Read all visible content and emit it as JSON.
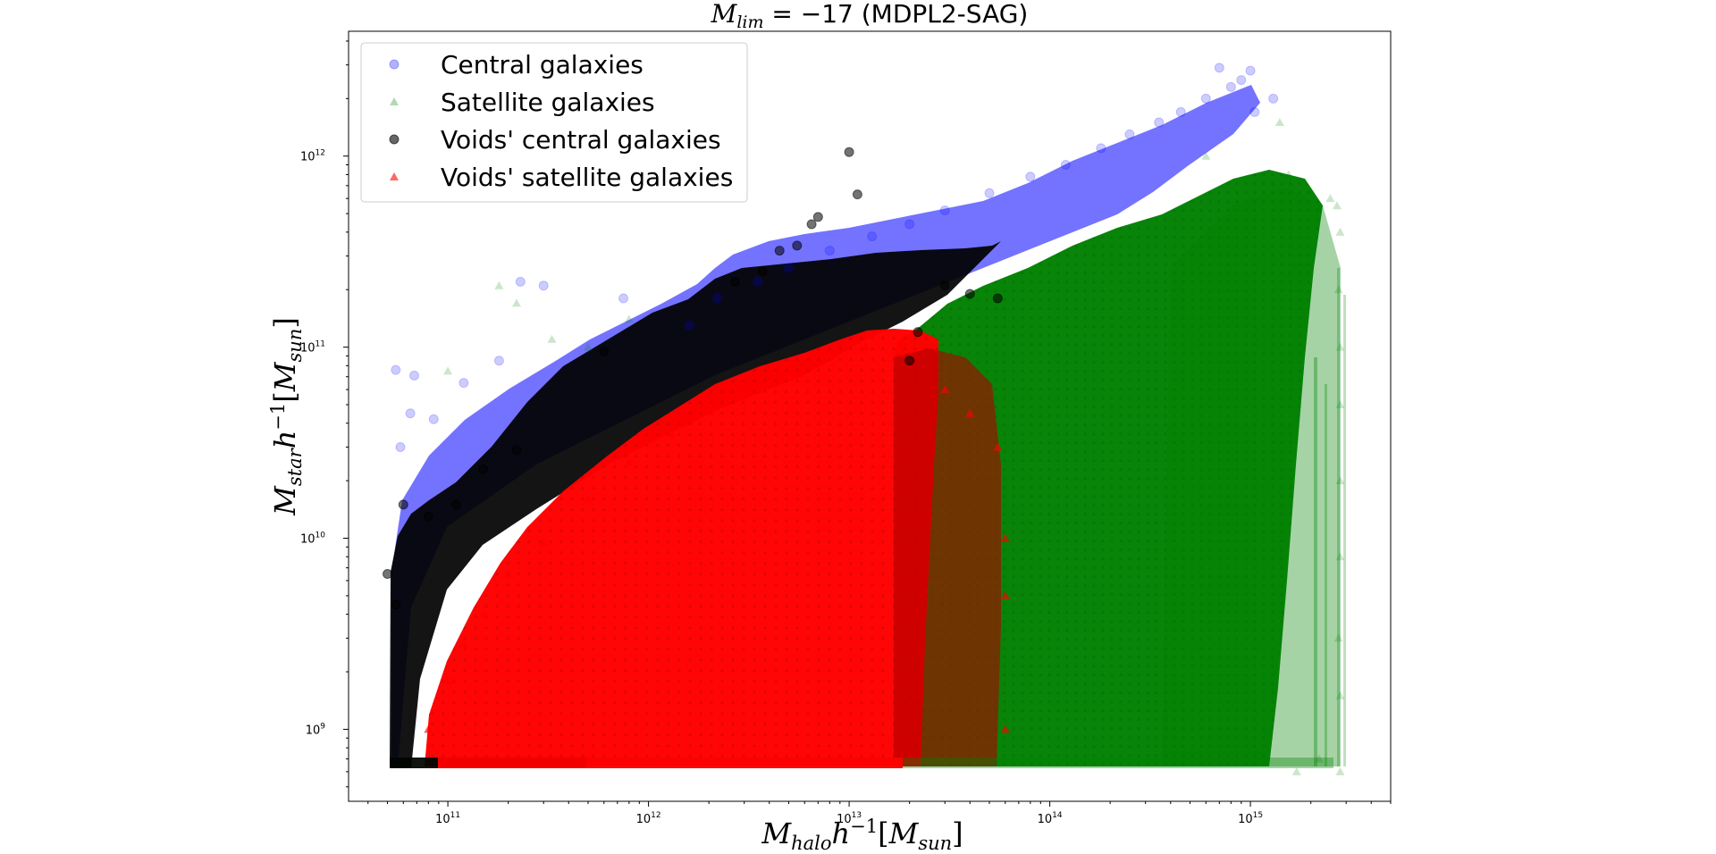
{
  "chart_data": {
    "type": "scatter",
    "title": "M_lim = −17 (MDPL2-SAG)",
    "xlabel": "M_halo h^-1[M_sun]",
    "ylabel": "M_star h^-1[M_sun]",
    "x_scale": "log",
    "y_scale": "log",
    "xlim": [
      32000000000.0,
      5000000000000000.0
    ],
    "ylim": [
      420000000.0,
      4500000000000.0
    ],
    "grid": false,
    "legend_position": "upper-left",
    "x_ticks": [
      {
        "base": "10",
        "exp": "11",
        "value": 100000000000.0
      },
      {
        "base": "10",
        "exp": "12",
        "value": 1000000000000.0
      },
      {
        "base": "10",
        "exp": "13",
        "value": 10000000000000.0
      },
      {
        "base": "10",
        "exp": "14",
        "value": 100000000000000.0
      },
      {
        "base": "10",
        "exp": "15",
        "value": 1000000000000000.0
      }
    ],
    "y_ticks": [
      {
        "base": "10",
        "exp": "9",
        "value": 1000000000.0
      },
      {
        "base": "10",
        "exp": "10",
        "value": 10000000000.0
      },
      {
        "base": "10",
        "exp": "11",
        "value": 100000000000.0
      },
      {
        "base": "10",
        "exp": "12",
        "value": 1000000000000.0
      }
    ],
    "series": [
      {
        "name": "Central galaxies",
        "marker": "circle",
        "color": "#0000ff",
        "alpha": 0.12,
        "relation": "M_star rises with M_halo from ~5e8 at M_halo 5e10 to ~2.5e12 at M_halo 1e15",
        "points": [
          [
            55000000000.0,
            76000000000.0
          ],
          [
            68000000000.0,
            71000000000.0
          ],
          [
            65000000000.0,
            45000000000.0
          ],
          [
            58000000000.0,
            30000000000.0
          ],
          [
            85000000000.0,
            42000000000.0
          ],
          [
            120000000000.0,
            65000000000.0
          ],
          [
            180000000000.0,
            85000000000.0
          ],
          [
            230000000000.0,
            220000000000.0
          ],
          [
            300000000000.0,
            210000000000.0
          ],
          [
            750000000000.0,
            180000000000.0
          ],
          [
            1600000000000.0,
            130000000000.0
          ],
          [
            2200000000000.0,
            180000000000.0
          ],
          [
            3500000000000.0,
            220000000000.0
          ],
          [
            5000000000000.0,
            260000000000.0
          ],
          [
            8000000000000.0,
            320000000000.0
          ],
          [
            13000000000000.0,
            380000000000.0
          ],
          [
            20000000000000.0,
            440000000000.0
          ],
          [
            30000000000000.0,
            520000000000.0
          ],
          [
            50000000000000.0,
            640000000000.0
          ],
          [
            80000000000000.0,
            780000000000.0
          ],
          [
            120000000000000.0,
            900000000000.0
          ],
          [
            180000000000000.0,
            1100000000000.0
          ],
          [
            250000000000000.0,
            1300000000000.0
          ],
          [
            350000000000000.0,
            1500000000000.0
          ],
          [
            450000000000000.0,
            1700000000000.0
          ],
          [
            600000000000000.0,
            2000000000000.0
          ],
          [
            800000000000000.0,
            2300000000000.0
          ],
          [
            900000000000000.0,
            2500000000000.0
          ],
          [
            1000000000000000.0,
            2800000000000.0
          ],
          [
            1050000000000000.0,
            1700000000000.0
          ],
          [
            1300000000000000.0,
            2000000000000.0
          ],
          [
            700000000000000.0,
            2900000000000.0
          ]
        ]
      },
      {
        "name": "Satellite galaxies",
        "marker": "triangle",
        "color": "#008000",
        "alpha": 0.12,
        "relation": "dense cloud for M_halo 2e13 to 2e15, M_star from 5e8 to ~1e12",
        "points": [
          [
            180000000000.0,
            210000000000.0
          ],
          [
            220000000000.0,
            170000000000.0
          ],
          [
            100000000000.0,
            75000000000.0
          ],
          [
            330000000000.0,
            110000000000.0
          ],
          [
            500000000000.0,
            100000000000.0
          ],
          [
            800000000000.0,
            140000000000.0
          ],
          [
            1400000000000000.0,
            1500000000000.0
          ],
          [
            1550000000000000.0,
            800000000000.0
          ],
          [
            2000000000000000.0,
            650000000000.0
          ],
          [
            2500000000000000.0,
            600000000000.0
          ],
          [
            2700000000000000.0,
            550000000000.0
          ],
          [
            2800000000000000.0,
            400000000000.0
          ],
          [
            2750000000000000.0,
            200000000000.0
          ],
          [
            2800000000000000.0,
            100000000000.0
          ],
          [
            2800000000000000.0,
            50000000000.0
          ],
          [
            2800000000000000.0,
            20000000000.0
          ],
          [
            2800000000000000.0,
            8000000000.0
          ],
          [
            2750000000000000.0,
            3000000000.0
          ],
          [
            2800000000000000.0,
            1500000000.0
          ],
          [
            2800000000000000.0,
            600000000.0
          ],
          [
            2200000000000000.0,
            700000000.0
          ],
          [
            1700000000000000.0,
            600000000.0
          ],
          [
            600000000000000.0,
            1000000000000.0
          ]
        ]
      },
      {
        "name": "Voids' central galaxies",
        "marker": "circle",
        "color": "#000000",
        "alpha": 0.55,
        "relation": "band just below centrals, M_halo 5e10 to 5e13, M_star 5e8 to ~4e11",
        "points": [
          [
            50000000000.0,
            6500000000.0
          ],
          [
            55000000000.0,
            4500000000.0
          ],
          [
            60000000000.0,
            15000000000.0
          ],
          [
            80000000000.0,
            13000000000.0
          ],
          [
            110000000000.0,
            15000000000.0
          ],
          [
            150000000000.0,
            23000000000.0
          ],
          [
            220000000000.0,
            29000000000.0
          ],
          [
            600000000000.0,
            95000000000.0
          ],
          [
            10000000000000.0,
            1050000000000.0
          ],
          [
            11000000000000.0,
            630000000000.0
          ],
          [
            7000000000000.0,
            480000000000.0
          ],
          [
            6500000000000.0,
            440000000000.0
          ],
          [
            5500000000000.0,
            340000000000.0
          ],
          [
            4500000000000.0,
            320000000000.0
          ],
          [
            3700000000000.0,
            250000000000.0
          ],
          [
            2700000000000.0,
            220000000000.0
          ],
          [
            30000000000000.0,
            210000000000.0
          ],
          [
            40000000000000.0,
            190000000000.0
          ],
          [
            55000000000000.0,
            180000000000.0
          ],
          [
            20000000000000.0,
            85000000000.0
          ],
          [
            22000000000000.0,
            120000000000.0
          ]
        ]
      },
      {
        "name": "Voids' satellite galaxies",
        "marker": "triangle",
        "color": "#ff0000",
        "alpha": 0.65,
        "relation": "red cloud for M_halo 8e10 to 6e13, upper edge ~1e11 at 1e13",
        "points": [
          [
            80000000000.0,
            1000000000.0
          ],
          [
            100000000000.0,
            1800000000.0
          ],
          [
            120000000000.0,
            2800000000.0
          ],
          [
            150000000000.0,
            4000000000.0
          ],
          [
            200000000000.0,
            6500000000.0
          ],
          [
            300000000000.0,
            9500000000.0
          ],
          [
            500000000000.0,
            16000000000.0
          ],
          [
            800000000000.0,
            25000000000.0
          ],
          [
            1300000000000.0,
            35000000000.0
          ],
          [
            2000000000000.0,
            46000000000.0
          ],
          [
            3000000000000.0,
            58000000000.0
          ],
          [
            5000000000000.0,
            70000000000.0
          ],
          [
            8000000000000.0,
            90000000000.0
          ],
          [
            12000000000000.0,
            100000000000.0
          ],
          [
            18000000000000.0,
            105000000000.0
          ],
          [
            30000000000000.0,
            60000000000.0
          ],
          [
            40000000000000.0,
            45000000000.0
          ],
          [
            55000000000000.0,
            30000000000.0
          ],
          [
            60000000000000.0,
            10000000000.0
          ],
          [
            60000000000000.0,
            5000000000.0
          ],
          [
            60000000000000.0,
            1000000000.0
          ]
        ]
      }
    ]
  }
}
